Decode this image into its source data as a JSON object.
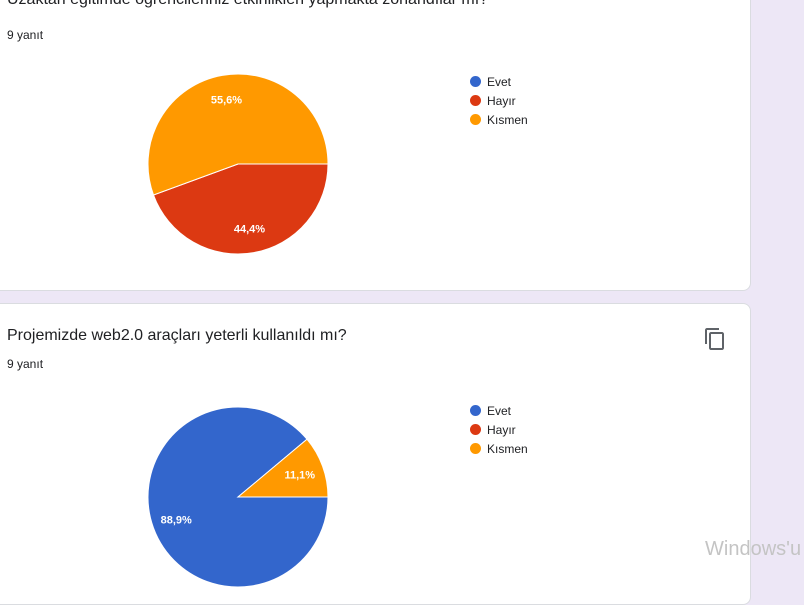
{
  "colors": {
    "evet": "#3366cc",
    "hayir": "#dc3912",
    "kismen": "#ff9900"
  },
  "questions": [
    {
      "title": "Uzaktan eğitimde öğrencileriniz etkinlikleri yapmakta zorlandılar mı?",
      "responses": "9 yanıt",
      "legend": [
        "Evet",
        "Hayır",
        "Kısmen"
      ],
      "chart_data": {
        "type": "pie",
        "categories": [
          "Evet",
          "Hayır",
          "Kısmen"
        ],
        "values": [
          0,
          44.4,
          55.6
        ],
        "labels": [
          "",
          "44,4%",
          "55,6%"
        ]
      }
    },
    {
      "title": "Projemizde web2.0 araçları yeterli kullanıldı mı?",
      "responses": "9 yanıt",
      "copy_icon": "copy-icon",
      "legend": [
        "Evet",
        "Hayır",
        "Kısmen"
      ],
      "chart_data": {
        "type": "pie",
        "categories": [
          "Evet",
          "Hayır",
          "Kısmen"
        ],
        "values": [
          88.9,
          0,
          11.1
        ],
        "labels": [
          "88,9%",
          "",
          "11,1%"
        ]
      }
    }
  ],
  "watermark": "Windows'u"
}
